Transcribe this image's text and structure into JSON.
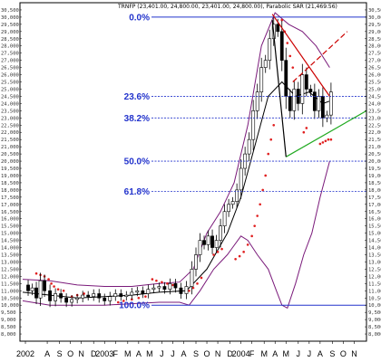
{
  "chart_data": {
    "type": "candlestick",
    "title": "TRNFP (23,401.00, 24,800.00, 23,401.00, 24,800.00), Parabolic SAR (21,469.56)",
    "y_range": [
      7500,
      31000
    ],
    "x_range": [
      2002.38,
      2004.92
    ],
    "y_ticks": [
      8000,
      8500,
      9000,
      9500,
      10000,
      10500,
      11000,
      11500,
      12000,
      12500,
      13000,
      13500,
      14000,
      14500,
      15000,
      15500,
      16000,
      16500,
      17000,
      17500,
      18000,
      18500,
      19000,
      19500,
      20000,
      20500,
      21000,
      21500,
      22000,
      22500,
      23000,
      23500,
      24000,
      24500,
      25000,
      25500,
      26000,
      26500,
      27000,
      27500,
      28000,
      28500,
      29000,
      29500,
      30000,
      30500
    ],
    "x_ticks": [
      {
        "label": "2002",
        "x": 2002.42
      },
      {
        "label": "A",
        "x": 2002.58
      },
      {
        "label": "S",
        "x": 2002.67
      },
      {
        "label": "O",
        "x": 2002.75
      },
      {
        "label": "N",
        "x": 2002.83
      },
      {
        "label": "D",
        "x": 2002.92
      },
      {
        "label": "2003",
        "x": 2003.0
      },
      {
        "label": "F",
        "x": 2003.08
      },
      {
        "label": "M",
        "x": 2003.17
      },
      {
        "label": "A",
        "x": 2003.25
      },
      {
        "label": "M",
        "x": 2003.33
      },
      {
        "label": "J",
        "x": 2003.42
      },
      {
        "label": "J",
        "x": 2003.5
      },
      {
        "label": "A",
        "x": 2003.58
      },
      {
        "label": "S",
        "x": 2003.67
      },
      {
        "label": "O",
        "x": 2003.75
      },
      {
        "label": "N",
        "x": 2003.83
      },
      {
        "label": "D",
        "x": 2003.92
      },
      {
        "label": "2004",
        "x": 2004.0
      },
      {
        "label": "F",
        "x": 2004.08
      },
      {
        "label": "M",
        "x": 2004.17
      },
      {
        "label": "A",
        "x": 2004.25
      },
      {
        "label": "M",
        "x": 2004.33
      },
      {
        "label": "J",
        "x": 2004.42
      },
      {
        "label": "J",
        "x": 2004.5
      },
      {
        "label": "A",
        "x": 2004.58
      },
      {
        "label": "S",
        "x": 2004.67
      },
      {
        "label": "O",
        "x": 2004.75
      },
      {
        "label": "N",
        "x": 2004.83
      }
    ],
    "fibonacci_levels": [
      {
        "label": "0.0%",
        "value": 30000
      },
      {
        "label": "23.6%",
        "value": 24500
      },
      {
        "label": "38.2%",
        "value": 23000
      },
      {
        "label": "50.0%",
        "value": 20000
      },
      {
        "label": "61.8%",
        "value": 17900
      },
      {
        "label": "100.0%",
        "value": 10000
      }
    ],
    "close_path": [
      [
        2002.4,
        11400
      ],
      [
        2002.44,
        11000
      ],
      [
        2002.47,
        11200
      ],
      [
        2002.5,
        10500
      ],
      [
        2002.53,
        11700
      ],
      [
        2002.56,
        11000
      ],
      [
        2002.6,
        10300
      ],
      [
        2002.64,
        10800
      ],
      [
        2002.68,
        10500
      ],
      [
        2002.72,
        10200
      ],
      [
        2002.76,
        10400
      ],
      [
        2002.8,
        10500
      ],
      [
        2002.84,
        10700
      ],
      [
        2002.88,
        10600
      ],
      [
        2002.92,
        10800
      ],
      [
        2002.96,
        10500
      ],
      [
        2003.0,
        10300
      ],
      [
        2003.04,
        10600
      ],
      [
        2003.08,
        10800
      ],
      [
        2003.12,
        10600
      ],
      [
        2003.16,
        10700
      ],
      [
        2003.2,
        10900
      ],
      [
        2003.24,
        11000
      ],
      [
        2003.28,
        10800
      ],
      [
        2003.32,
        11100
      ],
      [
        2003.36,
        11200
      ],
      [
        2003.4,
        11300
      ],
      [
        2003.44,
        11100
      ],
      [
        2003.48,
        11500
      ],
      [
        2003.52,
        11200
      ],
      [
        2003.56,
        10800
      ],
      [
        2003.6,
        11300
      ],
      [
        2003.64,
        12500
      ],
      [
        2003.67,
        13500
      ],
      [
        2003.7,
        14500
      ],
      [
        2003.73,
        14200
      ],
      [
        2003.76,
        14800
      ],
      [
        2003.79,
        14000
      ],
      [
        2003.82,
        14500
      ],
      [
        2003.85,
        15500
      ],
      [
        2003.88,
        16500
      ],
      [
        2003.91,
        17000
      ],
      [
        2003.94,
        17200
      ],
      [
        2003.97,
        18000
      ],
      [
        2004.0,
        19500
      ],
      [
        2004.03,
        20500
      ],
      [
        2004.06,
        21500
      ],
      [
        2004.09,
        23500
      ],
      [
        2004.12,
        24800
      ],
      [
        2004.15,
        26500
      ],
      [
        2004.18,
        27000
      ],
      [
        2004.21,
        28500
      ],
      [
        2004.24,
        29500
      ],
      [
        2004.27,
        29000
      ],
      [
        2004.3,
        27000
      ],
      [
        2004.33,
        24500
      ],
      [
        2004.36,
        23500
      ],
      [
        2004.39,
        25000
      ],
      [
        2004.42,
        24000
      ],
      [
        2004.45,
        26000
      ],
      [
        2004.48,
        25000
      ],
      [
        2004.51,
        24800
      ],
      [
        2004.54,
        23500
      ],
      [
        2004.57,
        24500
      ],
      [
        2004.6,
        23000
      ],
      [
        2004.63,
        23200
      ],
      [
        2004.66,
        24800
      ]
    ],
    "series": [
      {
        "name": "Bollinger Upper",
        "color": "#7a1a7a",
        "points": [
          [
            2002.4,
            11800
          ],
          [
            2002.6,
            11700
          ],
          [
            2002.8,
            11400
          ],
          [
            2003.0,
            11300
          ],
          [
            2003.2,
            11300
          ],
          [
            2003.4,
            11500
          ],
          [
            2003.55,
            11600
          ],
          [
            2003.65,
            12500
          ],
          [
            2003.75,
            15000
          ],
          [
            2003.85,
            16500
          ],
          [
            2003.95,
            18500
          ],
          [
            2004.05,
            22500
          ],
          [
            2004.15,
            28000
          ],
          [
            2004.25,
            30300
          ],
          [
            2004.35,
            29500
          ],
          [
            2004.45,
            29000
          ],
          [
            2004.55,
            28000
          ],
          [
            2004.65,
            26500
          ]
        ]
      },
      {
        "name": "Bollinger Lower",
        "color": "#7a1a7a",
        "points": [
          [
            2002.4,
            10300
          ],
          [
            2002.6,
            10000
          ],
          [
            2002.8,
            10000
          ],
          [
            2003.0,
            10000
          ],
          [
            2003.2,
            10100
          ],
          [
            2003.4,
            10200
          ],
          [
            2003.55,
            10200
          ],
          [
            2003.62,
            10000
          ],
          [
            2003.7,
            11000
          ],
          [
            2003.8,
            12500
          ],
          [
            2003.9,
            13500
          ],
          [
            2004.0,
            14800
          ],
          [
            2004.05,
            14500
          ],
          [
            2004.12,
            13500
          ],
          [
            2004.2,
            12500
          ],
          [
            2004.26,
            11000
          ],
          [
            2004.3,
            10000
          ],
          [
            2004.34,
            9800
          ],
          [
            2004.4,
            11500
          ],
          [
            2004.46,
            13500
          ],
          [
            2004.52,
            15000
          ],
          [
            2004.58,
            17500
          ],
          [
            2004.65,
            20000
          ]
        ]
      },
      {
        "name": "Moving Average",
        "color": "#000000",
        "points": [
          [
            2002.4,
            10900
          ],
          [
            2002.6,
            10700
          ],
          [
            2002.8,
            10500
          ],
          [
            2003.0,
            10600
          ],
          [
            2003.2,
            10700
          ],
          [
            2003.4,
            10900
          ],
          [
            2003.6,
            11000
          ],
          [
            2003.75,
            12500
          ],
          [
            2003.9,
            15000
          ],
          [
            2004.0,
            17500
          ],
          [
            2004.1,
            21000
          ],
          [
            2004.2,
            24500
          ],
          [
            2004.3,
            25500
          ],
          [
            2004.4,
            24500
          ],
          [
            2004.5,
            24800
          ],
          [
            2004.6,
            24000
          ],
          [
            2004.66,
            24200
          ]
        ]
      }
    ],
    "parabolic_sar": [
      [
        2002.5,
        12200
      ],
      [
        2002.53,
        12100
      ],
      [
        2002.56,
        12000
      ],
      [
        2002.59,
        11800
      ],
      [
        2002.61,
        11500
      ],
      [
        2002.63,
        11300
      ],
      [
        2002.66,
        11100
      ],
      [
        2002.7,
        11000
      ],
      [
        2002.76,
        10600
      ],
      [
        2002.8,
        10700
      ],
      [
        2002.85,
        10800
      ],
      [
        2003.1,
        10200
      ],
      [
        2003.14,
        10300
      ],
      [
        2003.2,
        10400
      ],
      [
        2003.25,
        10500
      ],
      [
        2003.3,
        10600
      ],
      [
        2003.35,
        11800
      ],
      [
        2003.38,
        11700
      ],
      [
        2003.42,
        11600
      ],
      [
        2003.46,
        11500
      ],
      [
        2003.5,
        11400
      ],
      [
        2003.62,
        11000
      ],
      [
        2003.65,
        11200
      ],
      [
        2003.68,
        11500
      ],
      [
        2003.71,
        11900
      ],
      [
        2003.8,
        13500
      ],
      [
        2003.83,
        13700
      ],
      [
        2003.86,
        13900
      ],
      [
        2003.96,
        13200
      ],
      [
        2003.99,
        13400
      ],
      [
        2004.02,
        13700
      ],
      [
        2004.05,
        14200
      ],
      [
        2004.08,
        14800
      ],
      [
        2004.1,
        15500
      ],
      [
        2004.12,
        16200
      ],
      [
        2004.14,
        17000
      ],
      [
        2004.16,
        18000
      ],
      [
        2004.18,
        19000
      ],
      [
        2004.2,
        20500
      ],
      [
        2004.22,
        21500
      ],
      [
        2004.24,
        22500
      ],
      [
        2004.3,
        29800
      ],
      [
        2004.32,
        29000
      ],
      [
        2004.34,
        28200
      ],
      [
        2004.36,
        27300
      ],
      [
        2004.38,
        26500
      ],
      [
        2004.46,
        22000
      ],
      [
        2004.48,
        22300
      ],
      [
        2004.58,
        21200
      ],
      [
        2004.6,
        21300
      ],
      [
        2004.62,
        21400
      ],
      [
        2004.64,
        21500
      ],
      [
        2004.66,
        21500
      ]
    ],
    "trendlines": [
      {
        "color": "#cc0000",
        "dash": false,
        "points": [
          [
            2004.23,
            30200
          ],
          [
            2004.65,
            24500
          ]
        ]
      },
      {
        "color": "#cc0000",
        "dash": true,
        "points": [
          [
            2004.38,
            25500
          ],
          [
            2004.78,
            29000
          ]
        ]
      },
      {
        "color": "#22aa22",
        "dash": false,
        "points": [
          [
            2004.33,
            20300
          ],
          [
            2004.92,
            23500
          ]
        ]
      },
      {
        "color": "#000000",
        "dash": false,
        "points": [
          [
            2004.23,
            29800
          ],
          [
            2004.33,
            20300
          ]
        ]
      }
    ]
  }
}
